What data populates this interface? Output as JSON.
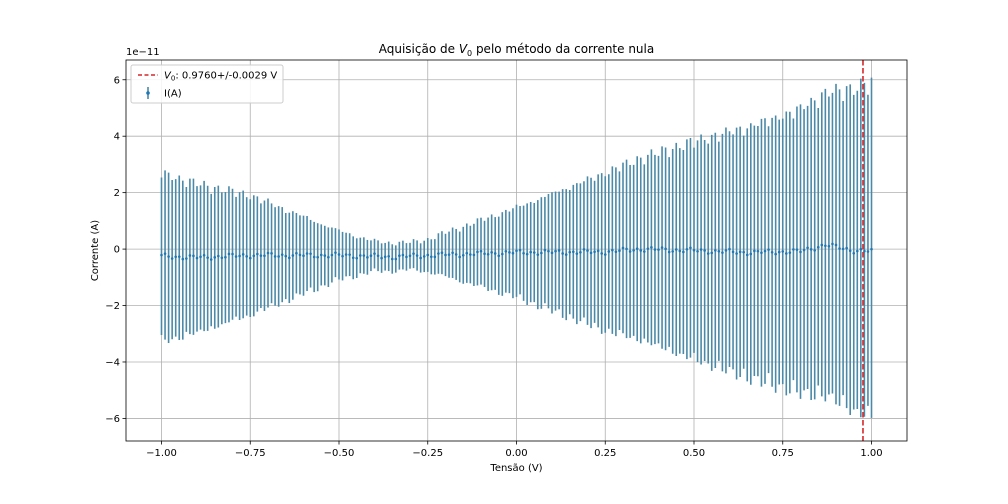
{
  "chart_data": {
    "type": "scatter",
    "title_prefix": "Aquisição de ",
    "title_var": "V",
    "title_sub": "0",
    "title_suffix": " pelo método da corrente nula",
    "xlabel": "Tensão (V)",
    "ylabel": "Corrente (A)",
    "y_offset_label": "1e−11",
    "xlim": [
      -1.1,
      1.1
    ],
    "ylim": [
      -6.8,
      6.7
    ],
    "xticks": [
      -1.0,
      -0.75,
      -0.5,
      -0.25,
      0.0,
      0.25,
      0.5,
      0.75,
      1.0
    ],
    "xtick_labels": [
      "−1.00",
      "−0.75",
      "−0.50",
      "−0.25",
      "0.00",
      "0.25",
      "0.50",
      "0.75",
      "1.00"
    ],
    "yticks": [
      -6,
      -4,
      -2,
      0,
      2,
      4,
      6
    ],
    "ytick_labels": [
      "−6",
      "−4",
      "−2",
      "0",
      "2",
      "4",
      "6"
    ],
    "grid": true,
    "legend_position": "upper-left",
    "series": [
      {
        "name": "I(A)",
        "kind": "errorbar",
        "color": "#1f77b4",
        "ecolor": "#4a89a8",
        "x_start": -1.0,
        "x_end": 1.0,
        "n": 201,
        "y_anchors": [
          [
            -1.0,
            -0.25
          ],
          [
            -0.9,
            -0.3
          ],
          [
            -0.75,
            -0.22
          ],
          [
            -0.5,
            -0.22
          ],
          [
            -0.35,
            -0.28
          ],
          [
            -0.2,
            -0.2
          ],
          [
            0.0,
            -0.12
          ],
          [
            0.25,
            -0.1
          ],
          [
            0.35,
            0.0
          ],
          [
            0.5,
            -0.05
          ],
          [
            0.65,
            -0.12
          ],
          [
            0.8,
            -0.08
          ],
          [
            0.87,
            0.15
          ],
          [
            0.95,
            -0.05
          ],
          [
            1.0,
            -0.08
          ]
        ],
        "err_up_anchors": [
          [
            -1.0,
            3.05
          ],
          [
            -0.75,
            2.2
          ],
          [
            -0.5,
            0.9
          ],
          [
            -0.4,
            0.55
          ],
          [
            -0.3,
            0.5
          ],
          [
            -0.25,
            0.6
          ],
          [
            0.0,
            1.65
          ],
          [
            0.25,
            2.9
          ],
          [
            0.5,
            4.0
          ],
          [
            0.75,
            5.0
          ],
          [
            1.0,
            6.2
          ]
        ],
        "err_down_anchors": [
          [
            -1.0,
            3.15
          ],
          [
            -0.75,
            2.2
          ],
          [
            -0.5,
            0.9
          ],
          [
            -0.4,
            0.55
          ],
          [
            -0.3,
            0.5
          ],
          [
            -0.25,
            0.6
          ],
          [
            0.0,
            1.65
          ],
          [
            0.25,
            2.9
          ],
          [
            0.5,
            4.0
          ],
          [
            0.75,
            5.0
          ],
          [
            1.0,
            6.1
          ]
        ]
      },
      {
        "name_var": "V",
        "name_sub": "0",
        "name_rest": ": 0.9760+/-0.0029 V",
        "kind": "vline",
        "x": 0.976,
        "color": "#d62728"
      }
    ]
  }
}
